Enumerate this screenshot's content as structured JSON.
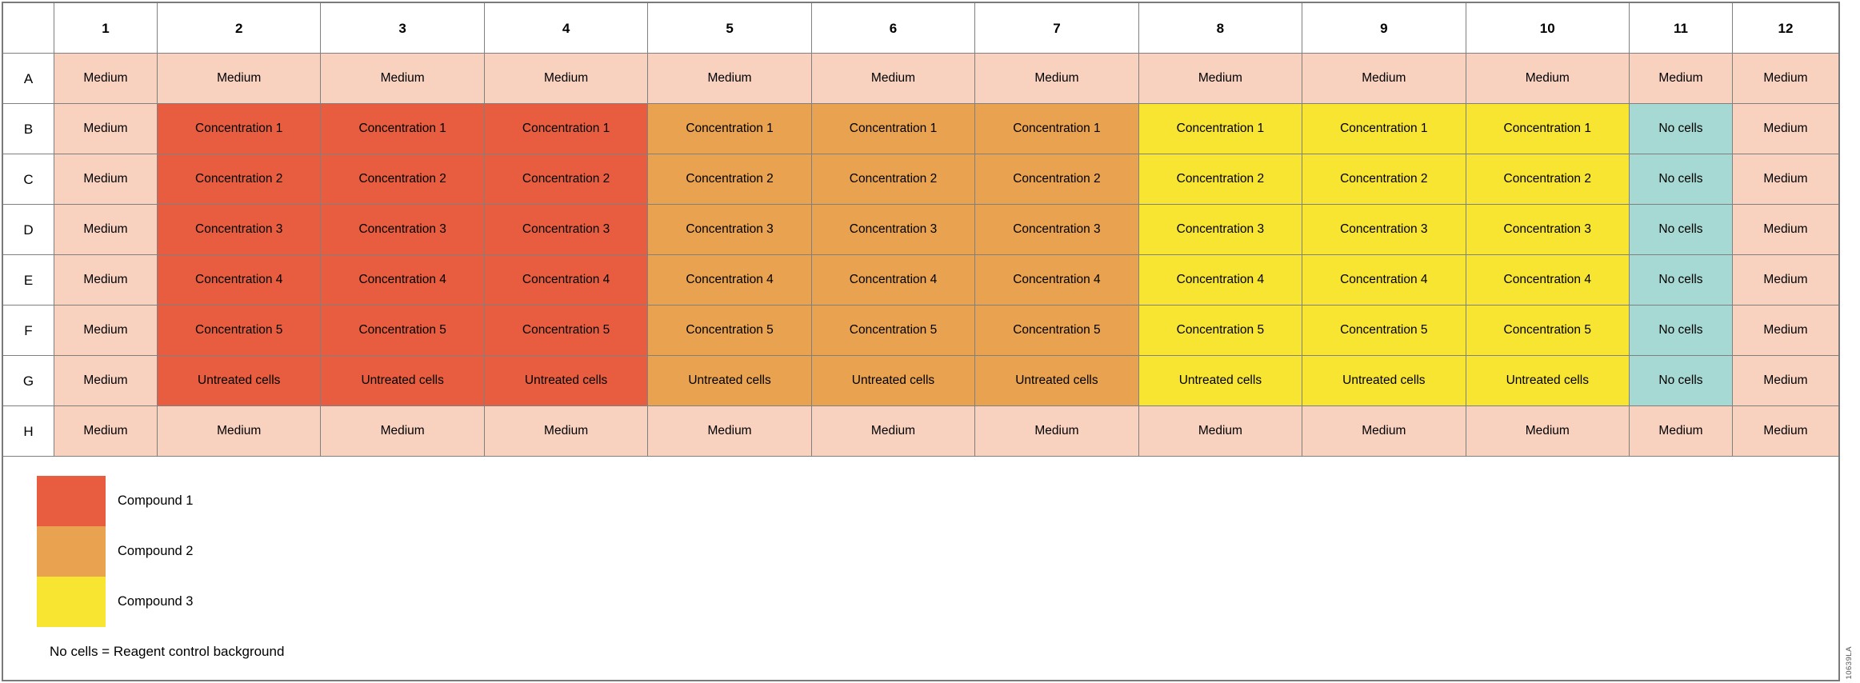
{
  "plate": {
    "corner_label": "",
    "column_headers": [
      "1",
      "2",
      "3",
      "4",
      "5",
      "6",
      "7",
      "8",
      "9",
      "10",
      "11",
      "12"
    ],
    "rows": [
      {
        "label": "A",
        "cells": [
          {
            "text": "Medium",
            "color": "medium"
          },
          {
            "text": "Medium",
            "color": "medium"
          },
          {
            "text": "Medium",
            "color": "medium"
          },
          {
            "text": "Medium",
            "color": "medium"
          },
          {
            "text": "Medium",
            "color": "medium"
          },
          {
            "text": "Medium",
            "color": "medium"
          },
          {
            "text": "Medium",
            "color": "medium"
          },
          {
            "text": "Medium",
            "color": "medium"
          },
          {
            "text": "Medium",
            "color": "medium"
          },
          {
            "text": "Medium",
            "color": "medium"
          },
          {
            "text": "Medium",
            "color": "medium"
          },
          {
            "text": "Medium",
            "color": "medium"
          }
        ]
      },
      {
        "label": "B",
        "cells": [
          {
            "text": "Medium",
            "color": "medium"
          },
          {
            "text": "Concentration 1",
            "color": "compound1"
          },
          {
            "text": "Concentration 1",
            "color": "compound1"
          },
          {
            "text": "Concentration 1",
            "color": "compound1"
          },
          {
            "text": "Concentration 1",
            "color": "compound2"
          },
          {
            "text": "Concentration 1",
            "color": "compound2"
          },
          {
            "text": "Concentration 1",
            "color": "compound2"
          },
          {
            "text": "Concentration 1",
            "color": "compound3"
          },
          {
            "text": "Concentration 1",
            "color": "compound3"
          },
          {
            "text": "Concentration 1",
            "color": "compound3"
          },
          {
            "text": "No cells",
            "color": "no_cells"
          },
          {
            "text": "Medium",
            "color": "medium"
          }
        ]
      },
      {
        "label": "C",
        "cells": [
          {
            "text": "Medium",
            "color": "medium"
          },
          {
            "text": "Concentration 2",
            "color": "compound1"
          },
          {
            "text": "Concentration 2",
            "color": "compound1"
          },
          {
            "text": "Concentration 2",
            "color": "compound1"
          },
          {
            "text": "Concentration 2",
            "color": "compound2"
          },
          {
            "text": "Concentration 2",
            "color": "compound2"
          },
          {
            "text": "Concentration 2",
            "color": "compound2"
          },
          {
            "text": "Concentration 2",
            "color": "compound3"
          },
          {
            "text": "Concentration 2",
            "color": "compound3"
          },
          {
            "text": "Concentration 2",
            "color": "compound3"
          },
          {
            "text": "No cells",
            "color": "no_cells"
          },
          {
            "text": "Medium",
            "color": "medium"
          }
        ]
      },
      {
        "label": "D",
        "cells": [
          {
            "text": "Medium",
            "color": "medium"
          },
          {
            "text": "Concentration 3",
            "color": "compound1"
          },
          {
            "text": "Concentration 3",
            "color": "compound1"
          },
          {
            "text": "Concentration 3",
            "color": "compound1"
          },
          {
            "text": "Concentration 3",
            "color": "compound2"
          },
          {
            "text": "Concentration 3",
            "color": "compound2"
          },
          {
            "text": "Concentration 3",
            "color": "compound2"
          },
          {
            "text": "Concentration 3",
            "color": "compound3"
          },
          {
            "text": "Concentration 3",
            "color": "compound3"
          },
          {
            "text": "Concentration 3",
            "color": "compound3"
          },
          {
            "text": "No cells",
            "color": "no_cells"
          },
          {
            "text": "Medium",
            "color": "medium"
          }
        ]
      },
      {
        "label": "E",
        "cells": [
          {
            "text": "Medium",
            "color": "medium"
          },
          {
            "text": "Concentration 4",
            "color": "compound1"
          },
          {
            "text": "Concentration 4",
            "color": "compound1"
          },
          {
            "text": "Concentration 4",
            "color": "compound1"
          },
          {
            "text": "Concentration 4",
            "color": "compound2"
          },
          {
            "text": "Concentration 4",
            "color": "compound2"
          },
          {
            "text": "Concentration 4",
            "color": "compound2"
          },
          {
            "text": "Concentration 4",
            "color": "compound3"
          },
          {
            "text": "Concentration 4",
            "color": "compound3"
          },
          {
            "text": "Concentration 4",
            "color": "compound3"
          },
          {
            "text": "No cells",
            "color": "no_cells"
          },
          {
            "text": "Medium",
            "color": "medium"
          }
        ]
      },
      {
        "label": "F",
        "cells": [
          {
            "text": "Medium",
            "color": "medium"
          },
          {
            "text": "Concentration 5",
            "color": "compound1"
          },
          {
            "text": "Concentration 5",
            "color": "compound1"
          },
          {
            "text": "Concentration 5",
            "color": "compound1"
          },
          {
            "text": "Concentration 5",
            "color": "compound2"
          },
          {
            "text": "Concentration 5",
            "color": "compound2"
          },
          {
            "text": "Concentration 5",
            "color": "compound2"
          },
          {
            "text": "Concentration 5",
            "color": "compound3"
          },
          {
            "text": "Concentration 5",
            "color": "compound3"
          },
          {
            "text": "Concentration 5",
            "color": "compound3"
          },
          {
            "text": "No cells",
            "color": "no_cells"
          },
          {
            "text": "Medium",
            "color": "medium"
          }
        ]
      },
      {
        "label": "G",
        "cells": [
          {
            "text": "Medium",
            "color": "medium"
          },
          {
            "text": "Untreated cells",
            "color": "compound1"
          },
          {
            "text": "Untreated cells",
            "color": "compound1"
          },
          {
            "text": "Untreated cells",
            "color": "compound1"
          },
          {
            "text": "Untreated cells",
            "color": "compound2"
          },
          {
            "text": "Untreated cells",
            "color": "compound2"
          },
          {
            "text": "Untreated cells",
            "color": "compound2"
          },
          {
            "text": "Untreated cells",
            "color": "compound3"
          },
          {
            "text": "Untreated cells",
            "color": "compound3"
          },
          {
            "text": "Untreated cells",
            "color": "compound3"
          },
          {
            "text": "No cells",
            "color": "no_cells"
          },
          {
            "text": "Medium",
            "color": "medium"
          }
        ]
      },
      {
        "label": "H",
        "cells": [
          {
            "text": "Medium",
            "color": "medium"
          },
          {
            "text": "Medium",
            "color": "medium"
          },
          {
            "text": "Medium",
            "color": "medium"
          },
          {
            "text": "Medium",
            "color": "medium"
          },
          {
            "text": "Medium",
            "color": "medium"
          },
          {
            "text": "Medium",
            "color": "medium"
          },
          {
            "text": "Medium",
            "color": "medium"
          },
          {
            "text": "Medium",
            "color": "medium"
          },
          {
            "text": "Medium",
            "color": "medium"
          },
          {
            "text": "Medium",
            "color": "medium"
          },
          {
            "text": "Medium",
            "color": "medium"
          },
          {
            "text": "Medium",
            "color": "medium"
          }
        ]
      }
    ]
  },
  "legend": {
    "items": [
      {
        "label": "Compound 1",
        "color": "compound1"
      },
      {
        "label": "Compound 2",
        "color": "compound2"
      },
      {
        "label": "Compound 3",
        "color": "compound3"
      }
    ],
    "note": "No cells = Reagent control background"
  },
  "watermark": "10639LA",
  "colors": {
    "medium": "#F9D1BF",
    "compound1": "#E85D3F",
    "compound2": "#E9A24F",
    "compound3": "#F8E531",
    "no_cells": "#A6D9D3",
    "grid_line": "#808080",
    "outer_border": "#7A7A7A"
  }
}
